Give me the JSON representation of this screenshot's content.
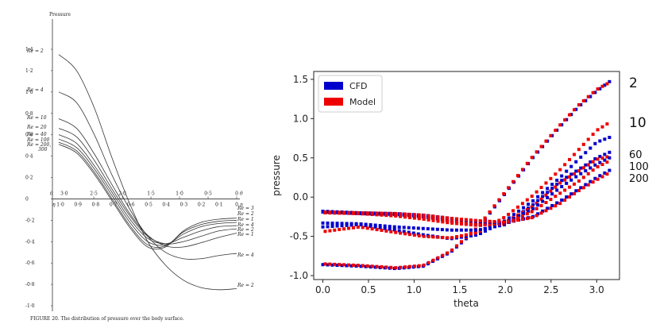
{
  "chart_data": [
    {
      "type": "line",
      "ylabel": "Pressure",
      "caption": "FIGURE 20. The distribution of pressure over the body surface.",
      "y_ticks": [
        "1·4",
        "1·2",
        "1·0",
        "0·8",
        "0·6",
        "0·4",
        "0·2",
        "0",
        "-0·2",
        "-0·4",
        "-0·6",
        "-0·8",
        "-1·0"
      ],
      "ylim": [
        -1.0,
        1.4
      ],
      "theta_axis": {
        "symbol": "θ",
        "start_label": "3·0",
        "ticks": [
          "2·5",
          "2·0",
          "1·5",
          "1·0",
          "0·5",
          "0"
        ],
        "range": [
          3.14,
          0
        ]
      },
      "eta_axis": {
        "symbol": "η",
        "ticks": [
          "1·0",
          "0·9",
          "0·8",
          "0·7",
          "0·6",
          "0·5",
          "0·4",
          "0·3",
          "0·2",
          "0·1",
          "0"
        ]
      },
      "series": [
        {
          "name": "Re = 2",
          "values": [
            1.35,
            1.2,
            0.85,
            0.38,
            -0.05,
            -0.4,
            -0.62,
            -0.76,
            -0.83,
            -0.85,
            -0.84
          ]
        },
        {
          "name": "Re = 4",
          "values": [
            1.0,
            0.9,
            0.6,
            0.22,
            -0.1,
            -0.35,
            -0.5,
            -0.56,
            -0.56,
            -0.53,
            -0.51
          ]
        },
        {
          "name": "Re = 10",
          "values": [
            0.75,
            0.66,
            0.42,
            0.13,
            -0.14,
            -0.34,
            -0.44,
            -0.45,
            -0.41,
            -0.36,
            -0.32
          ]
        },
        {
          "name": "Re = 20",
          "values": [
            0.66,
            0.58,
            0.36,
            0.09,
            -0.16,
            -0.35,
            -0.42,
            -0.4,
            -0.35,
            -0.3,
            -0.28
          ]
        },
        {
          "name": "Re = 40",
          "values": [
            0.6,
            0.52,
            0.31,
            0.06,
            -0.19,
            -0.37,
            -0.42,
            -0.36,
            -0.3,
            -0.26,
            -0.25
          ]
        },
        {
          "name": "Re = 100",
          "values": [
            0.56,
            0.48,
            0.28,
            0.03,
            -0.22,
            -0.4,
            -0.43,
            -0.33,
            -0.26,
            -0.23,
            -0.22
          ]
        },
        {
          "name": "Re = 200",
          "values": [
            0.53,
            0.45,
            0.25,
            0.0,
            -0.25,
            -0.43,
            -0.44,
            -0.31,
            -0.24,
            -0.21,
            -0.2
          ]
        },
        {
          "name": "Re = 300",
          "values": [
            0.51,
            0.43,
            0.23,
            -0.02,
            -0.27,
            -0.45,
            -0.45,
            -0.3,
            -0.22,
            -0.19,
            -0.18
          ]
        }
      ],
      "left_labels": [
        "Re = 2",
        "Re = 4",
        "Re = 10",
        "Re = 20",
        "Re = 40",
        "Re = 100",
        "Re = 200,",
        "300"
      ],
      "right_labels": [
        "Re = 300",
        "Re = 200",
        "Re = 100",
        "Re = 40",
        "Re = 20",
        "Re = 10",
        "Re = 4",
        "Re = 2"
      ]
    },
    {
      "type": "scatter",
      "xlabel": "theta",
      "ylabel": "pressure",
      "xlim": [
        -0.1,
        3.25
      ],
      "ylim": [
        -1.05,
        1.6
      ],
      "x_ticks": [
        "0.0",
        "0.5",
        "1.0",
        "1.5",
        "2.0",
        "2.5",
        "3.0"
      ],
      "y_ticks": [
        "1.5",
        "1.0",
        "0.5",
        "0.0",
        "-0.5",
        "-1.0"
      ],
      "legend": {
        "position": "top-left"
      },
      "colors": {
        "CFD": "#0000cc",
        "Model": "#ee0000"
      },
      "series_names": [
        "CFD",
        "Model"
      ],
      "curve_labels": [
        "2",
        "10",
        "60",
        "100",
        "200"
      ],
      "curves": [
        {
          "label": "2",
          "x": [
            0.0,
            0.4,
            0.8,
            1.1,
            1.4,
            1.7,
            2.0,
            2.3,
            2.6,
            2.8,
            3.0,
            3.14
          ],
          "cfd": [
            -0.86,
            -0.88,
            -0.91,
            -0.88,
            -0.7,
            -0.4,
            0.05,
            0.5,
            0.9,
            1.15,
            1.35,
            1.47
          ],
          "model": [
            -0.85,
            -0.87,
            -0.9,
            -0.87,
            -0.69,
            -0.38,
            0.07,
            0.52,
            0.92,
            1.17,
            1.37,
            1.46
          ]
        },
        {
          "label": "10",
          "x": [
            0.0,
            0.4,
            0.8,
            1.1,
            1.4,
            1.7,
            2.0,
            2.3,
            2.6,
            2.8,
            3.0,
            3.14
          ],
          "cfd": [
            -0.38,
            -0.35,
            -0.42,
            -0.48,
            -0.53,
            -0.48,
            -0.3,
            -0.05,
            0.25,
            0.48,
            0.7,
            0.76
          ],
          "model": [
            -0.44,
            -0.38,
            -0.45,
            -0.5,
            -0.52,
            -0.45,
            -0.25,
            0.02,
            0.35,
            0.6,
            0.85,
            0.95
          ]
        },
        {
          "label": "60",
          "x": [
            0.0,
            0.4,
            0.8,
            1.1,
            1.4,
            1.7,
            2.0,
            2.3,
            2.6,
            2.8,
            3.0,
            3.14
          ],
          "cfd": [
            -0.33,
            -0.34,
            -0.38,
            -0.4,
            -0.42,
            -0.42,
            -0.35,
            -0.1,
            0.2,
            0.35,
            0.5,
            0.57
          ],
          "model": [
            -0.19,
            -0.21,
            -0.24,
            -0.28,
            -0.33,
            -0.36,
            -0.32,
            -0.12,
            0.18,
            0.33,
            0.48,
            0.52
          ]
        },
        {
          "label": "100",
          "x": [
            0.0,
            0.4,
            0.8,
            1.1,
            1.4,
            1.7,
            2.0,
            2.3,
            2.6,
            2.8,
            3.0,
            3.14
          ],
          "cfd": [
            -0.19,
            -0.21,
            -0.22,
            -0.25,
            -0.3,
            -0.35,
            -0.33,
            -0.15,
            0.12,
            0.28,
            0.42,
            0.5
          ],
          "model": [
            -0.2,
            -0.21,
            -0.23,
            -0.26,
            -0.31,
            -0.35,
            -0.34,
            -0.18,
            0.05,
            0.2,
            0.38,
            0.46
          ]
        },
        {
          "label": "200",
          "x": [
            0.0,
            0.4,
            0.8,
            1.1,
            1.4,
            1.7,
            2.0,
            2.3,
            2.6,
            2.8,
            3.0,
            3.14
          ],
          "cfd": [
            -0.18,
            -0.2,
            -0.21,
            -0.23,
            -0.27,
            -0.31,
            -0.33,
            -0.25,
            -0.05,
            0.1,
            0.25,
            0.34
          ],
          "model": [
            -0.19,
            -0.2,
            -0.21,
            -0.23,
            -0.27,
            -0.3,
            -0.32,
            -0.26,
            -0.08,
            0.08,
            0.22,
            0.31
          ]
        }
      ]
    }
  ]
}
